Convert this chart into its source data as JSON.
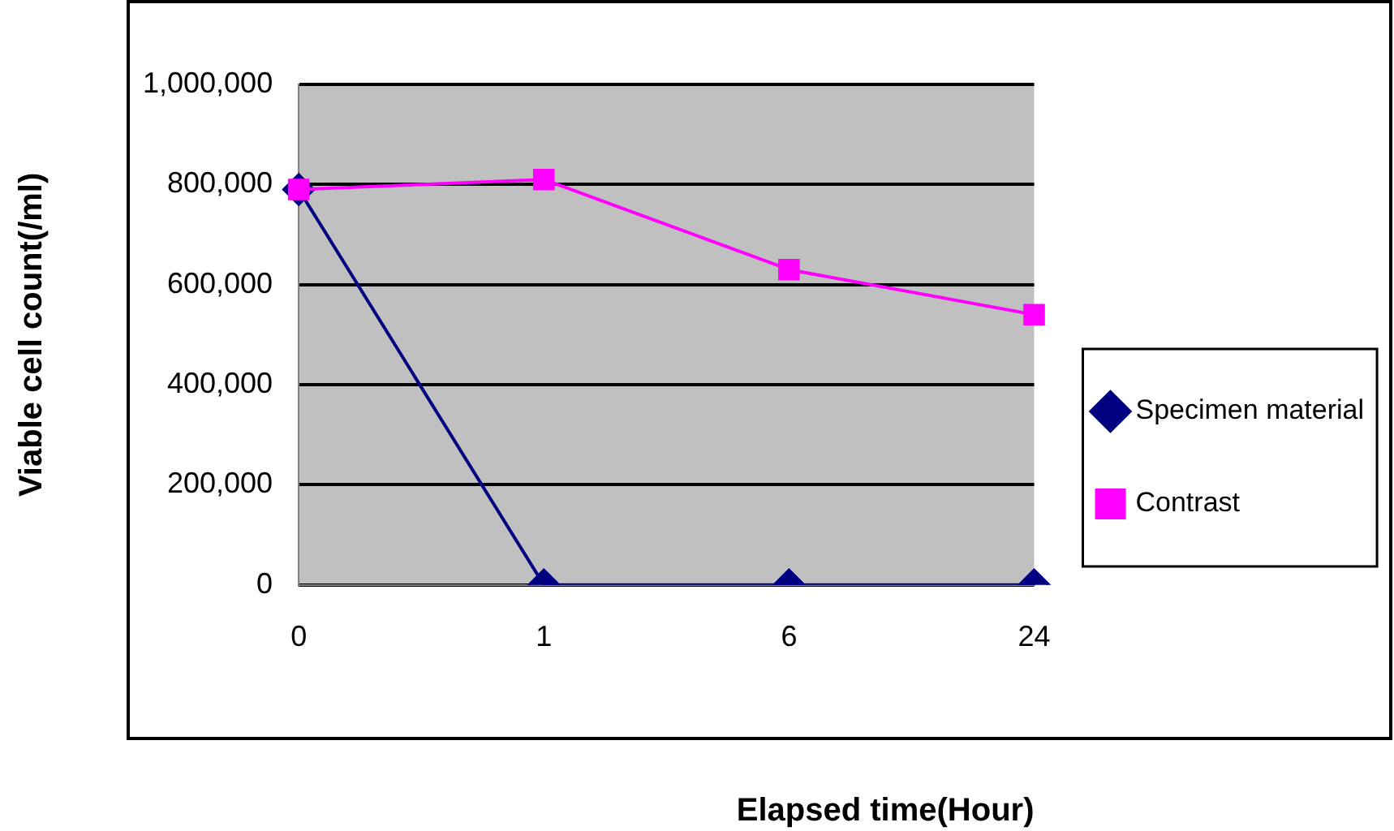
{
  "chart_data": {
    "type": "line",
    "xlabel": "Elapsed time(Hour)",
    "ylabel": "Viable cell count(/ml)",
    "categories": [
      "0",
      "1",
      "6",
      "24"
    ],
    "series": [
      {
        "name": "Specimen material",
        "color": "#000080",
        "marker": "diamond",
        "values": [
          790000,
          0,
          0,
          0
        ]
      },
      {
        "name": "Contrast",
        "color": "#ff00ff",
        "marker": "square",
        "values": [
          790000,
          810000,
          630000,
          540000
        ]
      }
    ],
    "ylim": [
      0,
      1000000
    ],
    "yticks": [
      {
        "value": 0,
        "label": "0"
      },
      {
        "value": 200000,
        "label": "200,000"
      },
      {
        "value": 400000,
        "label": "400,000"
      },
      {
        "value": 600000,
        "label": "600,000"
      },
      {
        "value": 800000,
        "label": "800,000"
      },
      {
        "value": 1000000,
        "label": "1,000,000"
      }
    ],
    "grid": "y",
    "legend": "right",
    "line_style": "solid"
  }
}
